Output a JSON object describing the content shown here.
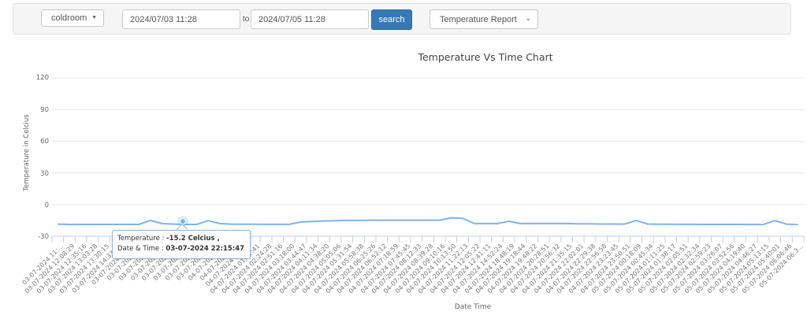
{
  "toolbar": {
    "location_select": {
      "value": "coldroom"
    },
    "from_date": {
      "value": "2024/07/03 11:28"
    },
    "to_label": "to",
    "to_date": {
      "value": "2024/07/05 11:28"
    },
    "search_label": "search",
    "report_select": {
      "value": "Temperature Report"
    }
  },
  "chart": {
    "title": "Temperature Vs Time Chart",
    "ylabel": "Temperature in Celcius",
    "xlabel": "Date Time",
    "y_ticks": [
      "120",
      "90",
      "60",
      "30",
      "0",
      "-30"
    ],
    "line_color": "#7cb5ec",
    "tooltip": {
      "temp_label": "Temperature : ",
      "temp_value": "-15.2 Celcius ,",
      "date_label": "Date & Time : ",
      "date_value": "03-07-2024 22:15:47"
    }
  },
  "chart_data": {
    "type": "line",
    "title": "Temperature Vs Time Chart",
    "xlabel": "Date Time",
    "ylabel": "Temperature in Celcius",
    "ylim": [
      -30,
      120
    ],
    "y_ticks": [
      -30,
      0,
      30,
      60,
      90,
      120
    ],
    "grid": true,
    "legend": "none",
    "x": [
      "03-07-2024 11:...",
      "03-07-2024 12:08:29",
      "03-07-2024 12:35:16",
      "03-07-2024 13:03:28",
      "03-07-2024 13:30:15",
      "03-07-2024 14:33:0?",
      "03-07-2024 15:...",
      "03-07-2024 1...",
      "03-07-2024 1...",
      "03-07-2024 2...",
      "03-07-2024 2...",
      "03-07-2024 2...",
      "03-07-2024 2...",
      "03-07-2024 2...",
      "04-07-2024 0...",
      "04-07-2024 0...",
      "04-07-2024 00:55",
      "04-07-2024 01:57:41",
      "04-07-2024 02:24:28",
      "04-07-2024 02:51:16",
      "04-07-2024 03:18:00",
      "04-07-2024 03:44:47",
      "04-07-2024 04:11:34",
      "04-07-2024 04:38:20",
      "04-07-2024 05:05:06",
      "04-07-2024 05:31:54",
      "04-07-2024 05:58:38",
      "04-07-2024 06:25:26",
      "04-07-2024 06:52:12",
      "04-07-2024 07:18:59",
      "04-07-2024 07:45:45",
      "04-07-2024 08:12:33",
      "04-07-2024 08:39:28",
      "04-07-2024 09:10:16",
      "04-07-2024 10:13:50",
      "04-07-2024 11:22:13",
      "04-07-2024 12:05:22",
      "04-07-2024 12:41:11",
      "04-07-2024 14:52:24",
      "04-07-2024 18:48:19",
      "04-07-2024 19:18:44",
      "04-07-2024 19:48:22",
      "04-07-2024 20:28:51",
      "04-07-2024 20:56:32",
      "04-07-2024 21:35:15",
      "04-07-2024 22:02:01",
      "04-07-2024 22:29:38",
      "04-07-2024 22:56:58",
      "04-07-2024 23:23:45",
      "04-07-2024 23:50:51",
      "05-07-2024 00:18:09",
      "05-07-2024 00:45:34",
      "05-07-2024 01:11:25",
      "05-07-2024 01:38:17",
      "05-07-2024 02:05:51",
      "05-07-2024 02:32:34",
      "05-07-2024 02:59:23",
      "05-07-2024 03:26:07",
      "05-07-2024 03:52:56",
      "05-07-2024 04:19:40",
      "05-07-2024 04:46:27",
      "05-07-2024 05:13:15",
      "05-07-2024 05:40:01",
      "05-07-2024 06:06:46",
      "05-07-2024 06:3..."
    ],
    "series": [
      {
        "name": "Temperature",
        "values": [
          -18.5,
          -18.8,
          -18.8,
          -18.8,
          -18.8,
          -18.8,
          -18.8,
          -18.8,
          -15.0,
          -18.0,
          -18.5,
          -18.8,
          -18.8,
          -15.2,
          -18.0,
          -18.5,
          -18.6,
          -18.6,
          -18.7,
          -18.7,
          -18.7,
          -16.5,
          -16.0,
          -15.5,
          -15.2,
          -15.0,
          -15.0,
          -14.8,
          -14.8,
          -14.8,
          -14.8,
          -14.8,
          -14.8,
          -14.8,
          -12.5,
          -13.0,
          -18.0,
          -18.0,
          -18.0,
          -15.8,
          -18.0,
          -18.0,
          -17.8,
          -18.0,
          -18.0,
          -18.2,
          -18.3,
          -18.4,
          -18.4,
          -18.5,
          -15.0,
          -18.4,
          -18.6,
          -18.6,
          -18.7,
          -18.7,
          -18.8,
          -18.8,
          -18.8,
          -18.8,
          -18.9,
          -18.9,
          -15.2,
          -18.5,
          -19.0
        ]
      }
    ],
    "highlighted_point": {
      "x": "03-07-2024 22:15:47",
      "y": -15.2
    }
  }
}
